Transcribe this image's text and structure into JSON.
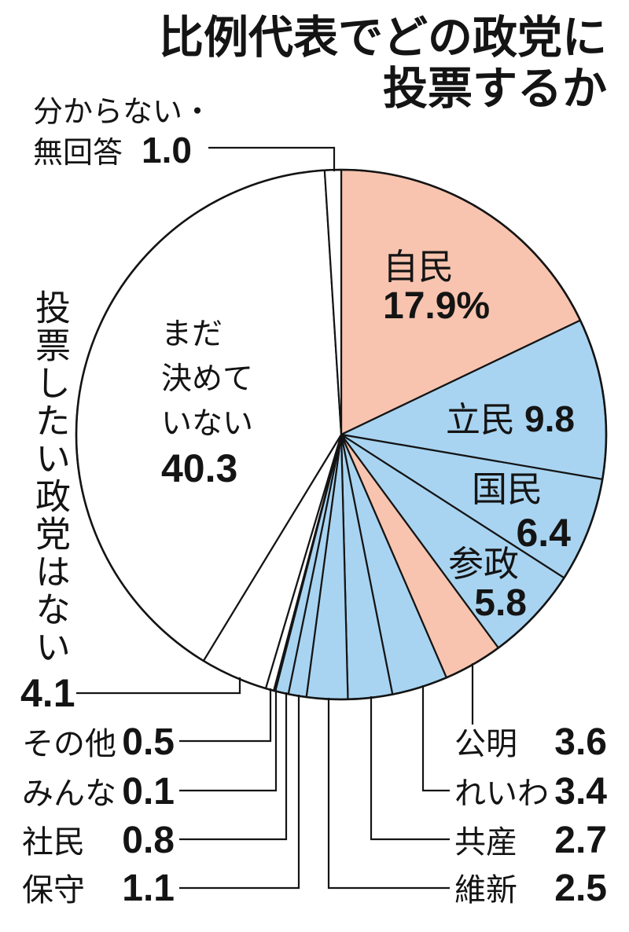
{
  "chart_data": {
    "type": "pie",
    "title_lines": [
      "比例代表でどの政党に",
      "投票するか"
    ],
    "slices": [
      {
        "label_lines": [
          "自民"
        ],
        "value": 17.9,
        "value_label": "17.9%",
        "color": "#F8C4AF"
      },
      {
        "label_lines": [
          "立民"
        ],
        "value": 9.8,
        "value_label": "9.8",
        "color": "#A8D4F1"
      },
      {
        "label_lines": [
          "国民"
        ],
        "value": 6.4,
        "value_label": "6.4",
        "color": "#A8D4F1"
      },
      {
        "label_lines": [
          "参政"
        ],
        "value": 5.8,
        "value_label": "5.8",
        "color": "#A8D4F1"
      },
      {
        "label_lines": [
          "公明"
        ],
        "value": 3.6,
        "value_label": "3.6",
        "color": "#F8C4AF"
      },
      {
        "label_lines": [
          "れいわ"
        ],
        "value": 3.4,
        "value_label": "3.4",
        "color": "#A8D4F1"
      },
      {
        "label_lines": [
          "共産"
        ],
        "value": 2.7,
        "value_label": "2.7",
        "color": "#A8D4F1"
      },
      {
        "label_lines": [
          "維新"
        ],
        "value": 2.5,
        "value_label": "2.5",
        "color": "#A8D4F1"
      },
      {
        "label_lines": [
          "保守"
        ],
        "value": 1.1,
        "value_label": "1.1",
        "color": "#A8D4F1"
      },
      {
        "label_lines": [
          "社民"
        ],
        "value": 0.8,
        "value_label": "0.8",
        "color": "#A8D4F1"
      },
      {
        "label_lines": [
          "みんな"
        ],
        "value": 0.1,
        "value_label": "0.1",
        "color": "#A8D4F1"
      },
      {
        "label_lines": [
          "その他"
        ],
        "value": 0.5,
        "value_label": "0.5",
        "color": "#FFFFFF"
      },
      {
        "label_lines": [
          "投票したい政党はない"
        ],
        "value": 4.1,
        "value_label": "4.1",
        "color": "#FFFFFF"
      },
      {
        "label_lines": [
          "まだ",
          "決めて",
          "いない"
        ],
        "value": 40.3,
        "value_label": "40.3",
        "color": "#FFFFFF"
      },
      {
        "label_lines": [
          "分からない・",
          "無回答"
        ],
        "value": 1.0,
        "value_label": "1.0",
        "color": "#FFFFFF"
      }
    ]
  }
}
